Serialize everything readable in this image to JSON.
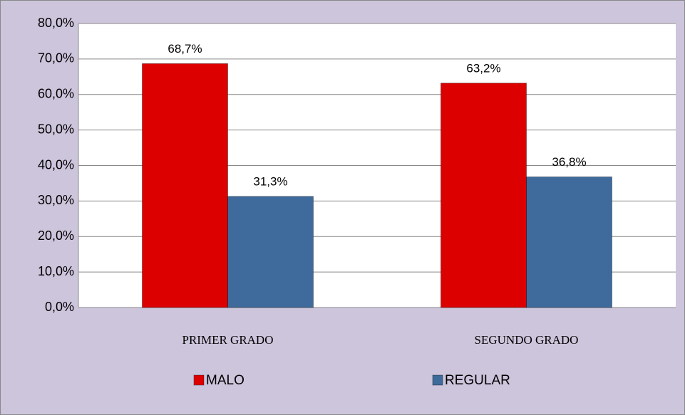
{
  "chart_data": {
    "type": "bar",
    "categories": [
      "PRIMER GRADO",
      "SEGUNDO  GRADO"
    ],
    "series": [
      {
        "name": "MALO",
        "color": "#dd0000",
        "values": [
          68.7,
          63.2
        ],
        "value_labels": [
          "68,7%",
          "63,2%"
        ]
      },
      {
        "name": "REGULAR",
        "color": "#3e6a9c",
        "values": [
          31.3,
          36.8
        ],
        "value_labels": [
          "31,3%",
          "36,8%"
        ]
      }
    ],
    "ylim": [
      0,
      80
    ],
    "yticks": [
      {
        "value": 0,
        "label": "0,0%"
      },
      {
        "value": 10,
        "label": "10,0%"
      },
      {
        "value": 20,
        "label": "20,0%"
      },
      {
        "value": 30,
        "label": "30,0%"
      },
      {
        "value": 40,
        "label": "40,0%"
      },
      {
        "value": 50,
        "label": "50,0%"
      },
      {
        "value": 60,
        "label": "60,0%"
      },
      {
        "value": 70,
        "label": "70,0%"
      },
      {
        "value": 80,
        "label": "80,0%"
      }
    ],
    "grid": true,
    "legend": "bottom"
  }
}
